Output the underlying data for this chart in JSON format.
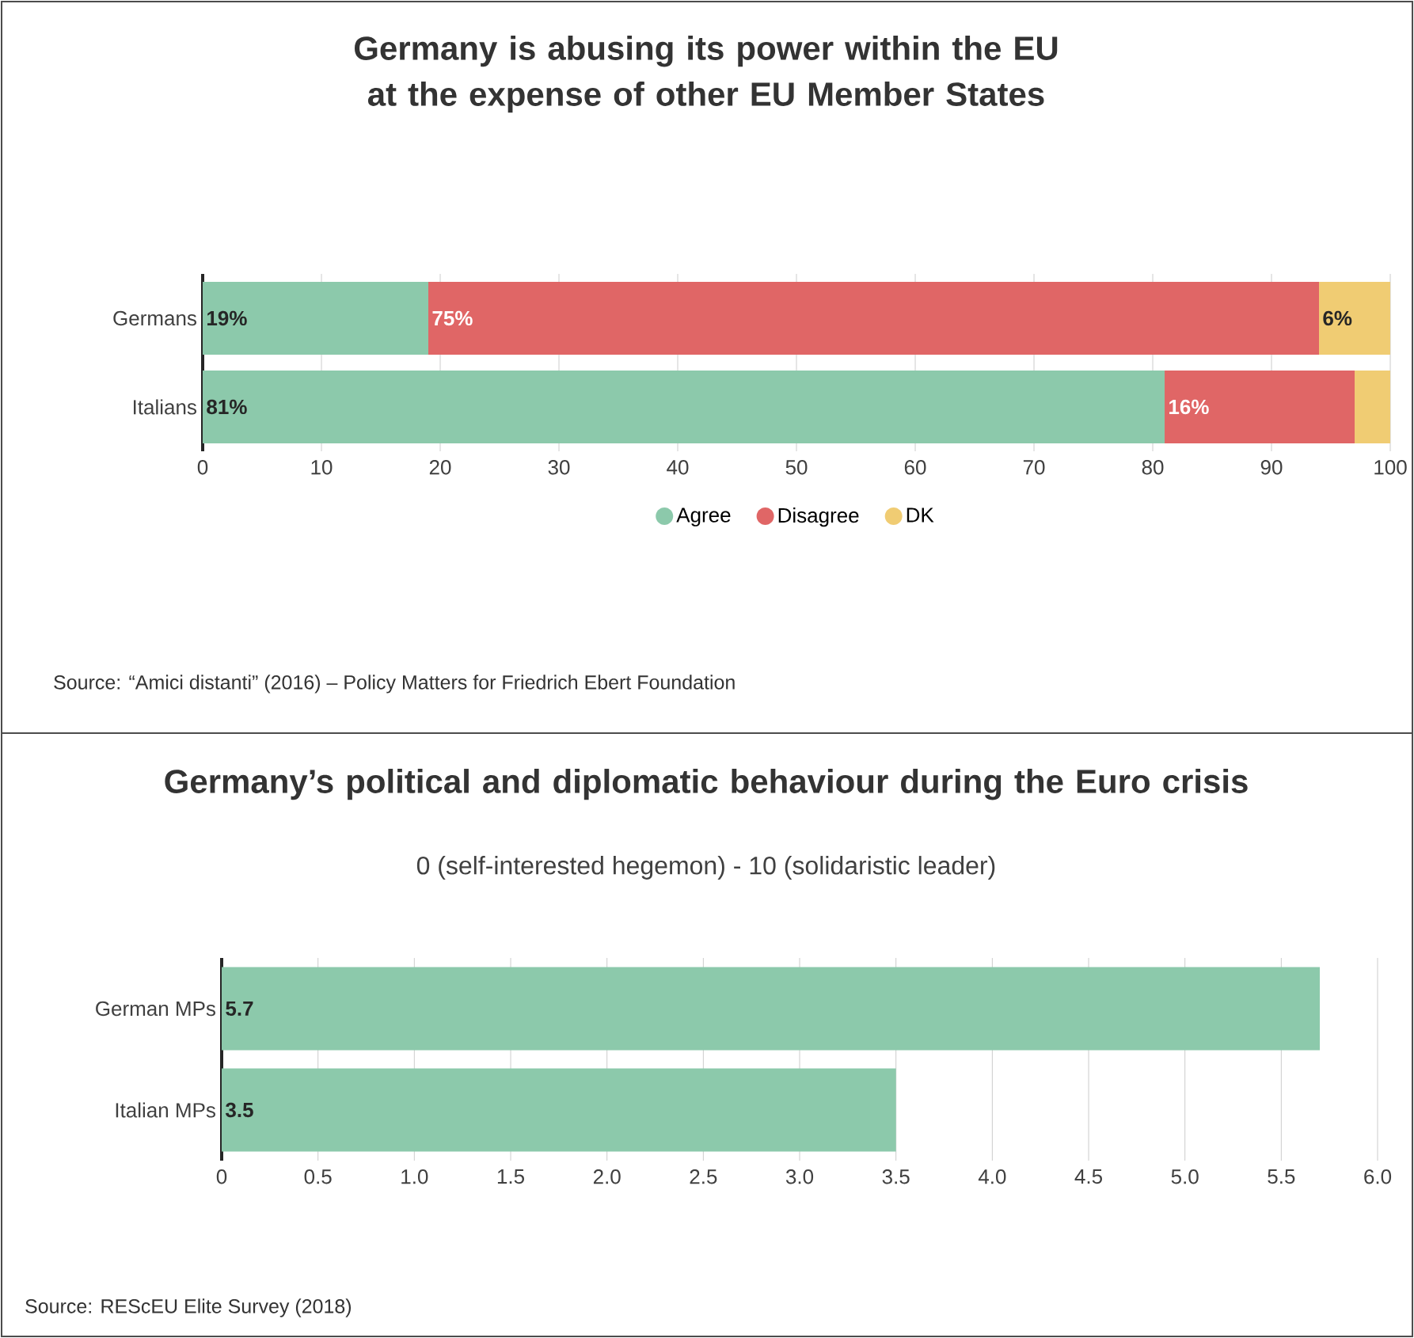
{
  "chart_data": [
    {
      "type": "bar",
      "orientation": "horizontal",
      "stacked": true,
      "title": "Germany is abusing its power within the EU at the expense of other EU Member States",
      "categories": [
        "Germans",
        "Italians"
      ],
      "series": [
        {
          "name": "Agree",
          "color": "#8cc9ab",
          "values": [
            19,
            81
          ],
          "value_labels": [
            "19%",
            "81%"
          ]
        },
        {
          "name": "Disagree",
          "color": "#e06666",
          "values": [
            75,
            16
          ],
          "value_labels": [
            "75%",
            "16%"
          ]
        },
        {
          "name": "DK",
          "color": "#f0cc73",
          "values": [
            6,
            3
          ],
          "value_labels": [
            "6%",
            null
          ]
        }
      ],
      "xlim": [
        0,
        100
      ],
      "xticks": [
        0,
        10,
        20,
        30,
        40,
        50,
        60,
        70,
        80,
        90,
        100
      ],
      "grid": "x",
      "legend": "bottom",
      "annotations": [
        "Source:  “Amici distanti” (2016) – Policy Matters for Friedrich Ebert Foundation"
      ]
    },
    {
      "type": "bar",
      "orientation": "horizontal",
      "title": "Germany’s political and diplomatic behaviour during the Euro crisis",
      "subtitle": "0 (self-interested hegemon) - 10 (solidaristic leader)",
      "categories": [
        "German MPs",
        "Italian MPs"
      ],
      "values": [
        5.7,
        3.5
      ],
      "color": "#8cc9ab",
      "data_labels": true,
      "xlim": [
        0,
        6
      ],
      "xticks": [
        0,
        {
          "value": 0.5,
          "label": "0.5"
        },
        {
          "value": 1,
          "label": "1.0"
        },
        {
          "value": 1.5,
          "label": "1.5"
        },
        {
          "value": 2,
          "label": "2.0"
        },
        {
          "value": 2.5,
          "label": "2.5"
        },
        {
          "value": 3,
          "label": "3.0"
        },
        {
          "value": 3.5,
          "label": "3.5"
        },
        {
          "value": 4,
          "label": "4.0"
        },
        {
          "value": 4.5,
          "label": "4.5"
        },
        {
          "value": 5,
          "label": "5.0"
        },
        {
          "value": 5.5,
          "label": "5.5"
        },
        {
          "value": 6,
          "label": "6.0"
        }
      ],
      "grid": "x",
      "annotations": [
        "Source: REScEU Elite Survey (2018)"
      ]
    }
  ]
}
